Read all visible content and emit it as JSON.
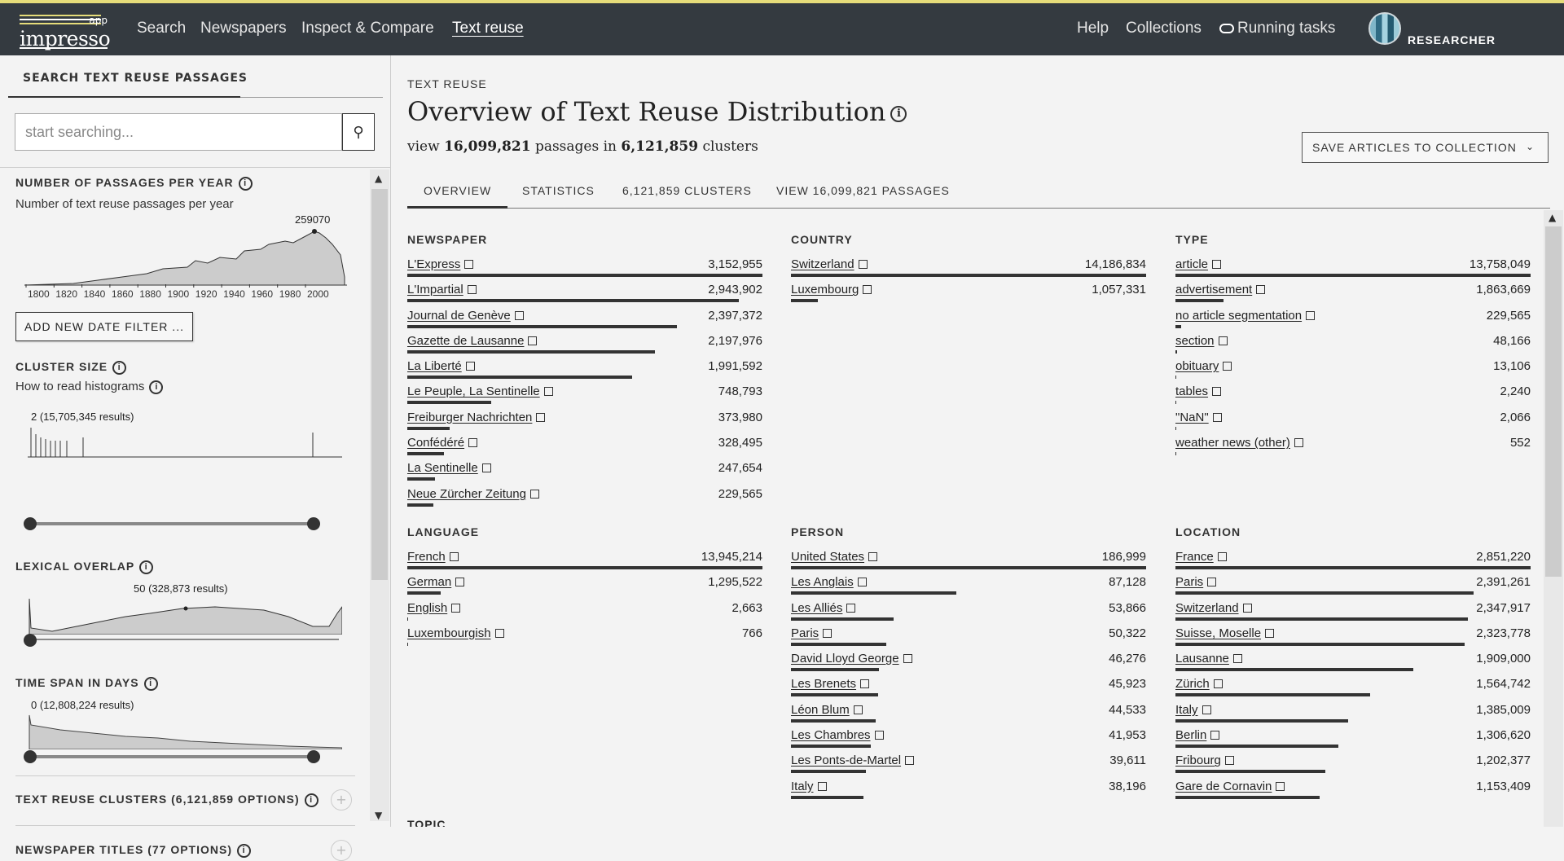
{
  "header": {
    "logo": "impresso",
    "logo_app": "app",
    "nav": [
      "Search",
      "Newspapers",
      "Inspect & Compare",
      "Text reuse"
    ],
    "right_nav": [
      "Help",
      "Collections",
      "Running tasks"
    ],
    "user_role": "RESEARCHER"
  },
  "sidebar": {
    "tab": "SEARCH TEXT REUSE PASSAGES",
    "search_placeholder": "start searching...",
    "passages_per_year": {
      "title": "NUMBER OF PASSAGES PER YEAR",
      "subtitle": "Number of text reuse passages per year",
      "peak_label": "259070",
      "x_ticks": [
        "1800",
        "1820",
        "1840",
        "1860",
        "1880",
        "1900",
        "1920",
        "1940",
        "1960",
        "1980",
        "2000"
      ]
    },
    "add_filter": "ADD NEW DATE FILTER ...",
    "cluster_size": {
      "title": "CLUSTER SIZE",
      "subtitle": "How to read histograms",
      "annotation": "2 (15,705,345 results)"
    },
    "lexical_overlap": {
      "title": "LEXICAL OVERLAP",
      "annotation": "50 (328,873 results)"
    },
    "time_span": {
      "title": "TIME SPAN IN DAYS",
      "annotation": "0 (12,808,224 results)"
    },
    "facets": [
      "TEXT REUSE CLUSTERS (6,121,859 OPTIONS)",
      "NEWSPAPER TITLES (77 OPTIONS)"
    ]
  },
  "main": {
    "kicker": "TEXT REUSE",
    "title": "Overview of Text Reuse Distribution",
    "summary": {
      "pre": "view",
      "passages": "16,099,821",
      "mid": "passages in",
      "clusters": "6,121,859",
      "post": "clusters"
    },
    "save_button": "SAVE ARTICLES TO COLLECTION",
    "tabs": [
      "OVERVIEW",
      "STATISTICS",
      "6,121,859 CLUSTERS",
      "VIEW 16,099,821 PASSAGES"
    ],
    "next_section": "TOPIC",
    "groups": [
      {
        "title": "NEWSPAPER",
        "items": [
          {
            "label": "L'Express",
            "value": "3,152,955",
            "frac": 1.0
          },
          {
            "label": "L'Impartial",
            "value": "2,943,902",
            "frac": 0.934
          },
          {
            "label": "Journal de Genève",
            "value": "2,397,372",
            "frac": 0.76
          },
          {
            "label": "Gazette de Lausanne",
            "value": "2,197,976",
            "frac": 0.697
          },
          {
            "label": "La Liberté",
            "value": "1,991,592",
            "frac": 0.632
          },
          {
            "label": "Le Peuple, La Sentinelle",
            "value": "748,793",
            "frac": 0.237
          },
          {
            "label": "Freiburger Nachrichten",
            "value": "373,980",
            "frac": 0.119
          },
          {
            "label": "Confédéré",
            "value": "328,495",
            "frac": 0.104
          },
          {
            "label": "La Sentinelle",
            "value": "247,654",
            "frac": 0.079
          },
          {
            "label": "Neue Zürcher Zeitung",
            "value": "229,565",
            "frac": 0.073
          }
        ]
      },
      {
        "title": "COUNTRY",
        "items": [
          {
            "label": "Switzerland",
            "value": "14,186,834",
            "frac": 1.0
          },
          {
            "label": "Luxembourg",
            "value": "1,057,331",
            "frac": 0.075
          }
        ]
      },
      {
        "title": "TYPE",
        "items": [
          {
            "label": "article",
            "value": "13,758,049",
            "frac": 1.0
          },
          {
            "label": "advertisement",
            "value": "1,863,669",
            "frac": 0.135
          },
          {
            "label": "no article segmentation",
            "value": "229,565",
            "frac": 0.017
          },
          {
            "label": "section",
            "value": "48,166",
            "frac": 0.0035
          },
          {
            "label": "obituary",
            "value": "13,106",
            "frac": 0.001
          },
          {
            "label": "tables",
            "value": "2,240",
            "frac": 0.0002
          },
          {
            "label": "\"NaN\"",
            "value": "2,066",
            "frac": 0.00015
          },
          {
            "label": "weather news (other)",
            "value": "552",
            "frac": 4e-05
          }
        ]
      },
      {
        "title": "LANGUAGE",
        "items": [
          {
            "label": "French",
            "value": "13,945,214",
            "frac": 1.0
          },
          {
            "label": "German",
            "value": "1,295,522",
            "frac": 0.093
          },
          {
            "label": "English",
            "value": "2,663",
            "frac": 0.0002
          },
          {
            "label": "Luxembourgish",
            "value": "766",
            "frac": 5e-05
          }
        ]
      },
      {
        "title": "PERSON",
        "items": [
          {
            "label": "United States",
            "value": "186,999",
            "frac": 1.0
          },
          {
            "label": "Les Anglais",
            "value": "87,128",
            "frac": 0.466
          },
          {
            "label": "Les Alliés",
            "value": "53,866",
            "frac": 0.288
          },
          {
            "label": "Paris",
            "value": "50,322",
            "frac": 0.269
          },
          {
            "label": "David Lloyd George",
            "value": "46,276",
            "frac": 0.247
          },
          {
            "label": "Les Brenets",
            "value": "45,923",
            "frac": 0.246
          },
          {
            "label": "Léon Blum",
            "value": "44,533",
            "frac": 0.238
          },
          {
            "label": "Les Chambres",
            "value": "41,953",
            "frac": 0.224
          },
          {
            "label": "Les Ponts-de-Martel",
            "value": "39,611",
            "frac": 0.212
          },
          {
            "label": "Italy",
            "value": "38,196",
            "frac": 0.204
          }
        ]
      },
      {
        "title": "LOCATION",
        "items": [
          {
            "label": "France",
            "value": "2,851,220",
            "frac": 1.0
          },
          {
            "label": "Paris",
            "value": "2,391,261",
            "frac": 0.839
          },
          {
            "label": "Switzerland",
            "value": "2,347,917",
            "frac": 0.823
          },
          {
            "label": "Suisse, Moselle",
            "value": "2,323,778",
            "frac": 0.815
          },
          {
            "label": "Lausanne",
            "value": "1,909,000",
            "frac": 0.67
          },
          {
            "label": "Zürich",
            "value": "1,564,742",
            "frac": 0.549
          },
          {
            "label": "Italy",
            "value": "1,385,009",
            "frac": 0.486
          },
          {
            "label": "Berlin",
            "value": "1,306,620",
            "frac": 0.458
          },
          {
            "label": "Fribourg",
            "value": "1,202,377",
            "frac": 0.422
          },
          {
            "label": "Gare de Cornavin",
            "value": "1,153,409",
            "frac": 0.405
          }
        ]
      }
    ]
  }
}
